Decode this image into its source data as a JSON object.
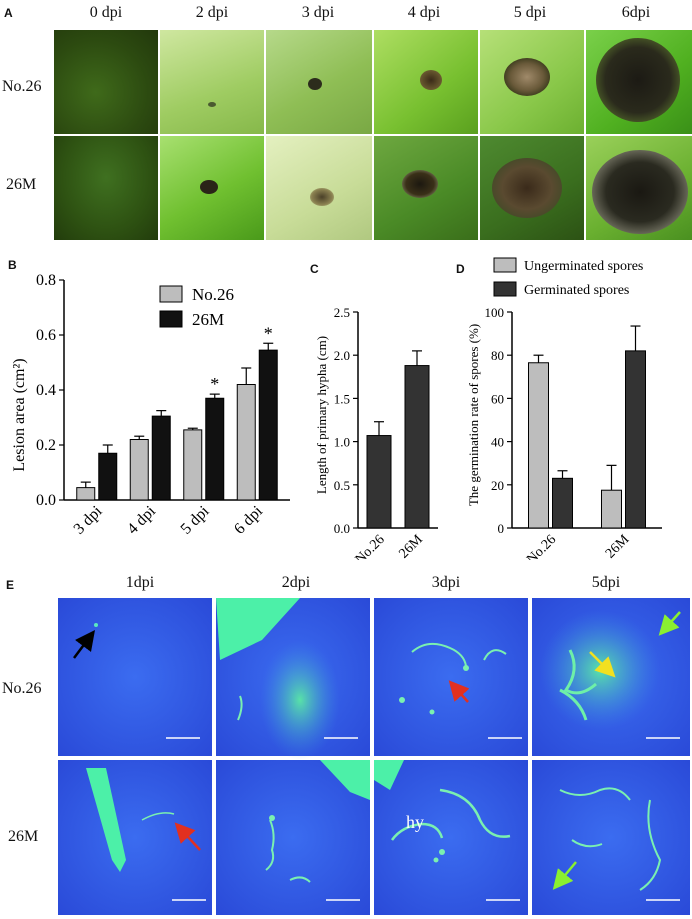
{
  "panelA": {
    "label": "A",
    "columns": [
      "0 dpi",
      "2 dpi",
      "3 dpi",
      "4 dpi",
      "5 dpi",
      "6dpi"
    ],
    "rows": [
      "No.26",
      "26M"
    ]
  },
  "panelB": {
    "label": "B",
    "chart_data": {
      "type": "bar",
      "ylabel": "Lesion area (cm²)",
      "categories": [
        "3 dpi",
        "4 dpi",
        "5 dpi",
        "6 dpi"
      ],
      "ylim": [
        0,
        0.8
      ],
      "yticks": [
        "0.0",
        "0.2",
        "0.4",
        "0.6",
        "0.8"
      ],
      "series": [
        {
          "name": "No.26",
          "color": "#bdbdbd",
          "values": [
            0.045,
            0.22,
            0.255,
            0.42
          ],
          "errors": [
            0.02,
            0.012,
            0.006,
            0.06
          ]
        },
        {
          "name": "26M",
          "color": "#111111",
          "values": [
            0.17,
            0.305,
            0.37,
            0.545
          ],
          "errors": [
            0.03,
            0.02,
            0.015,
            0.025
          ]
        }
      ],
      "significance": [
        "",
        "",
        "*",
        "*"
      ]
    }
  },
  "panelC": {
    "label": "C",
    "chart_data": {
      "type": "bar",
      "ylabel": "Length of primary hypha (cm)",
      "categories": [
        "No.26",
        "26M"
      ],
      "ylim": [
        0,
        2.5
      ],
      "yticks": [
        "0.0",
        "0.5",
        "1.0",
        "1.5",
        "2.0",
        "2.5"
      ],
      "values": [
        1.07,
        1.88
      ],
      "errors": [
        0.16,
        0.17
      ],
      "color": "#333333"
    }
  },
  "panelD": {
    "label": "D",
    "chart_data": {
      "type": "bar",
      "ylabel": "The germination rate of spores (%)",
      "categories": [
        "No.26",
        "26M"
      ],
      "ylim": [
        0,
        100
      ],
      "yticks": [
        "0",
        "20",
        "40",
        "60",
        "80",
        "100"
      ],
      "series": [
        {
          "name": "Ungerminated spores",
          "color": "#bdbdbd",
          "values": [
            76.5,
            17.5
          ],
          "errors": [
            3.5,
            11.5
          ]
        },
        {
          "name": "Germinated spores",
          "color": "#333333",
          "values": [
            23,
            82
          ],
          "errors": [
            3.5,
            11.5
          ]
        }
      ]
    }
  },
  "panelE": {
    "label": "E",
    "columns": [
      "1dpi",
      "2dpi",
      "3dpi",
      "5dpi"
    ],
    "rows": [
      "No.26",
      "26M"
    ],
    "annotation": "hy"
  }
}
